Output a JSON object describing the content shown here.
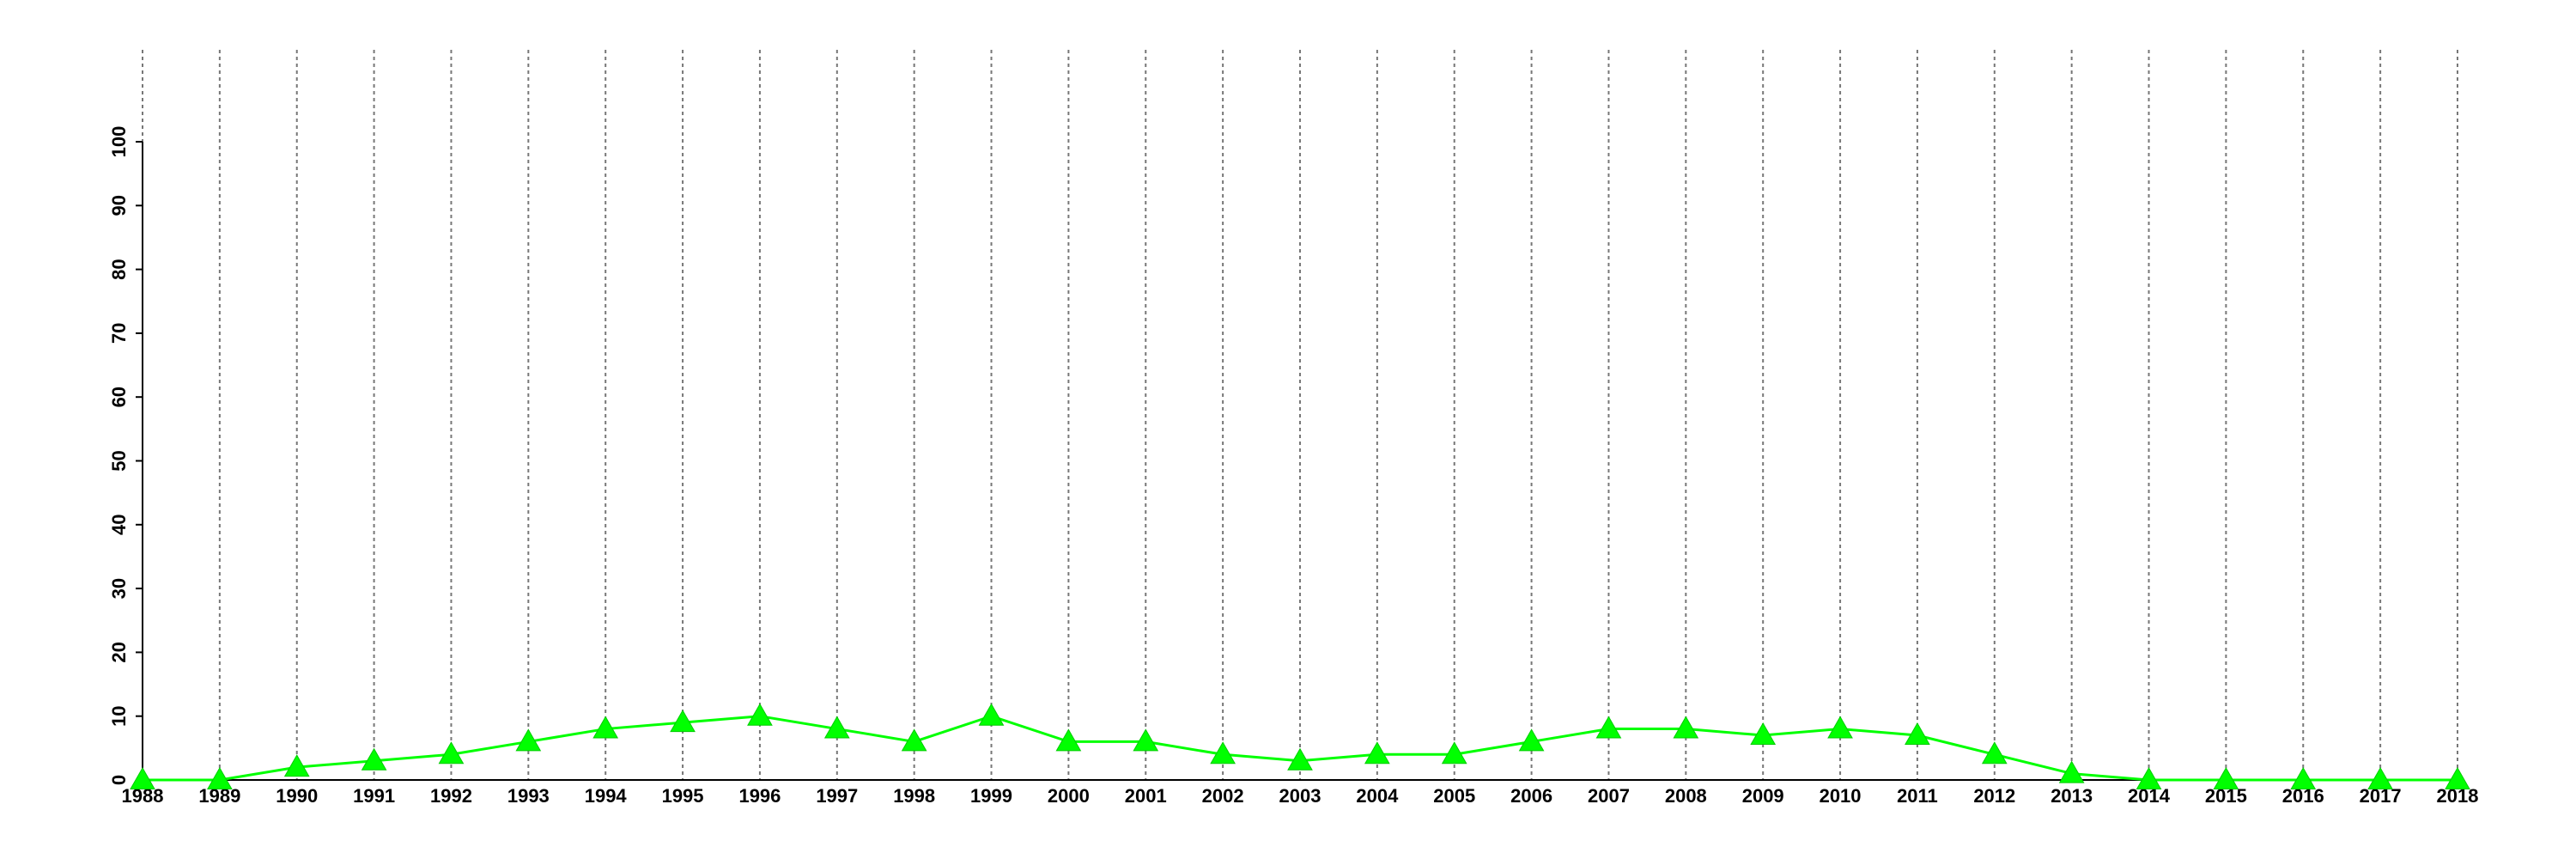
{
  "chart_data": {
    "type": "line",
    "x": [
      1988,
      1989,
      1990,
      1991,
      1992,
      1993,
      1994,
      1995,
      1996,
      1997,
      1998,
      1999,
      2000,
      2001,
      2002,
      2003,
      2004,
      2005,
      2006,
      2007,
      2008,
      2009,
      2010,
      2011,
      2012,
      2013,
      2014,
      2015,
      2016,
      2017,
      2018
    ],
    "values": [
      0,
      0,
      2,
      3,
      4,
      6,
      8,
      9,
      10,
      8,
      6,
      10,
      6,
      6,
      4,
      3,
      4,
      4,
      6,
      8,
      8,
      7,
      8,
      7,
      4,
      1,
      0,
      0,
      0,
      0,
      0
    ],
    "color": "#00ff00",
    "marker": "triangle",
    "xlim": [
      1988,
      2018
    ],
    "xticks": [
      1988,
      1989,
      1990,
      1991,
      1992,
      1993,
      1994,
      1995,
      1996,
      1997,
      1998,
      1999,
      2000,
      2001,
      2002,
      2003,
      2004,
      2005,
      2006,
      2007,
      2008,
      2009,
      2010,
      2011,
      2012,
      2013,
      2014,
      2015,
      2016,
      2017,
      2018
    ],
    "ylim": [
      0,
      100
    ],
    "yticks": [
      0,
      10,
      20,
      30,
      40,
      50,
      60,
      70,
      80,
      90,
      100
    ],
    "grid": "x"
  }
}
